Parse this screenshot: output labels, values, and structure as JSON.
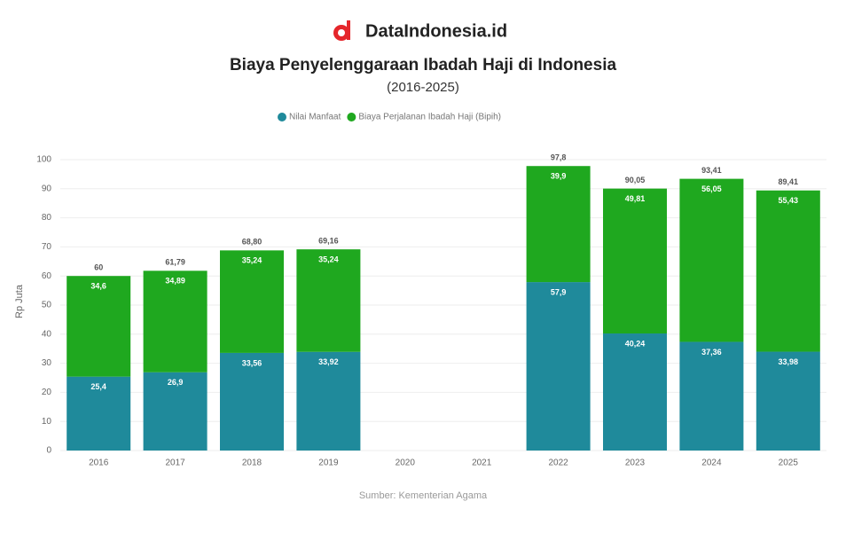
{
  "header": {
    "brand": "DataIndonesia.id"
  },
  "chart_data": {
    "type": "stacked_bar",
    "title": "Biaya Penyelenggaraan Ibadah Haji di Indonesia",
    "subtitle": "(2016-2025)",
    "y_label": "Rp Juta",
    "categories": [
      "2016",
      "2017",
      "2018",
      "2019",
      "2020",
      "2021",
      "2022",
      "2023",
      "2024",
      "2025"
    ],
    "series": [
      {
        "name": "Nilai Manfaat",
        "color": "#1f8a9b",
        "values": [
          25.4,
          26.9,
          33.56,
          33.92,
          null,
          null,
          57.9,
          40.24,
          37.36,
          33.98
        ],
        "value_labels": [
          "25,4",
          "26,9",
          "33,56",
          "33,92",
          null,
          null,
          "57,9",
          "40,24",
          "37,36",
          "33,98"
        ]
      },
      {
        "name": "Biaya Perjalanan Ibadah Haji (Bipih)",
        "color": "#1fa81f",
        "values": [
          34.6,
          34.89,
          35.24,
          35.24,
          null,
          null,
          39.9,
          49.81,
          56.05,
          55.43
        ],
        "value_labels": [
          "34,6",
          "34,89",
          "35,24",
          "35,24",
          null,
          null,
          "39,9",
          "49,81",
          "56,05",
          "55,43"
        ]
      }
    ],
    "totals": [
      60,
      61.79,
      68.8,
      69.16,
      null,
      null,
      97.8,
      90.05,
      93.41,
      89.41
    ],
    "total_labels": [
      "60",
      "61,79",
      "68,80",
      "69,16",
      null,
      null,
      "97,8",
      "90,05",
      "93,41",
      "89,41"
    ],
    "ylim": [
      0,
      100
    ],
    "yticks": [
      0,
      10,
      20,
      30,
      40,
      50,
      60,
      70,
      80,
      90,
      100
    ],
    "grid": true,
    "legend": "top",
    "source": "Sumber: Kementerian Agama"
  }
}
